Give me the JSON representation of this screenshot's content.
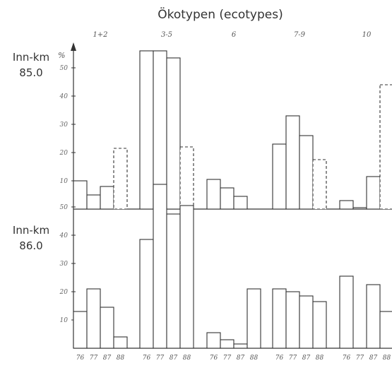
{
  "chart_data": {
    "type": "bar",
    "title": "Ökotypen (ecotypes)",
    "y_unit": "%",
    "groups": [
      "1+2",
      "3-5",
      "6",
      "7-9",
      "10"
    ],
    "years": [
      "76",
      "77",
      "87",
      "88"
    ],
    "dashed_year": "88",
    "panels": [
      {
        "label_line1": "Inn-km",
        "label_line2": "85.0",
        "y_ticks": [
          "10",
          "20",
          "30",
          "40",
          "50"
        ],
        "ylim": [
          0,
          58
        ],
        "values": {
          "1+2": [
            10,
            5,
            8,
            21.5
          ],
          "3-5": [
            56,
            56,
            53.5,
            22
          ],
          "6": [
            10.5,
            7.5,
            4.5,
            0
          ],
          "7-9": [
            23,
            33,
            26,
            17.5
          ],
          "10": [
            3,
            0.5,
            11.5,
            44
          ]
        }
      },
      {
        "label_line1": "Inn-km",
        "label_line2": "86.0",
        "y_ticks": [
          "10",
          "20",
          "30",
          "40",
          "50"
        ],
        "ylim": [
          0,
          58
        ],
        "values": {
          "1+2": [
            13,
            21,
            14.5,
            4
          ],
          "3-5": [
            38.5,
            58,
            47.5,
            50.5
          ],
          "6": [
            5.5,
            3,
            1.5,
            21
          ],
          "7-9": [
            21,
            20,
            18.5,
            16.5
          ],
          "10": [
            25.5,
            0,
            22.5,
            13
          ]
        }
      }
    ],
    "bar_color": "#ffffff",
    "line_color": "#333333",
    "grid": false,
    "legend": "none"
  }
}
